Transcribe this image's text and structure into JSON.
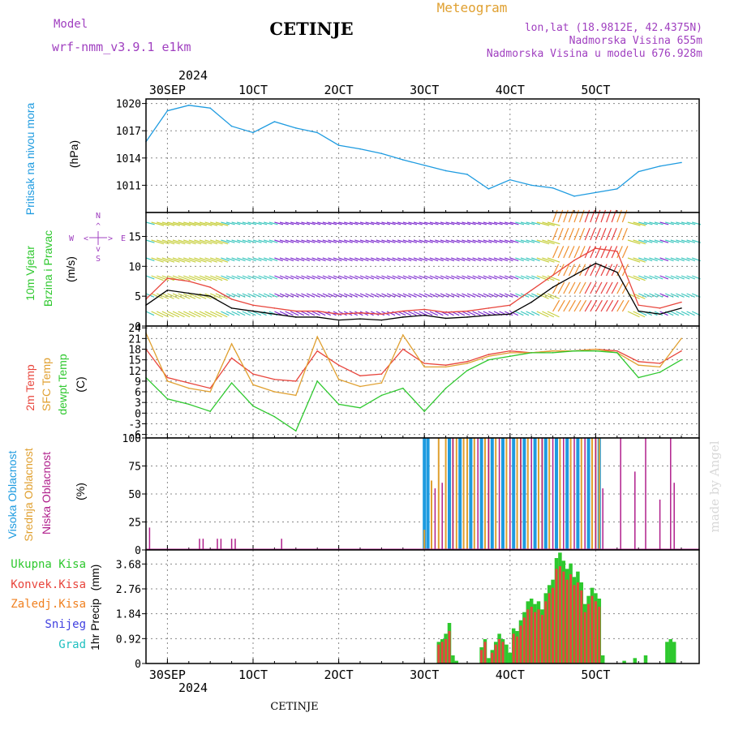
{
  "header": {
    "model_label": "Model",
    "model_name": "wrf-nmm_v3.9.1 e1km",
    "station_title": "CETINJE",
    "meteogram_label": "Meteogram",
    "lonlat": "lon,lat (18.9812E, 42.4375N)",
    "altitude": "Nadmorska Visina 655m",
    "model_altitude": "Nadmorska Visina u modelu 676.928m",
    "watermark": "made by Angel",
    "footer_title": "CETINJE"
  },
  "time_axis": {
    "top_year": "2024",
    "bottom_year": "2024",
    "tick_labels": [
      "30SEP",
      "1OCT",
      "2OCT",
      "3OCT",
      "4OCT",
      "5OCT"
    ]
  },
  "colors": {
    "pressure": "#1e9be0",
    "temp2m": "#e8453c",
    "sfc_temp": "#e0a030",
    "dewpt": "#2ec82e",
    "high_cloud": "#1e9be0",
    "mid_cloud": "#e0a030",
    "low_cloud": "#b0208c",
    "total_precip": "#2ec82e",
    "conv_precip": "#e8453c",
    "grid_precip": "#f08020",
    "snow": "#4040e0",
    "hail": "#20c0c0"
  },
  "chart_data": [
    {
      "type": "line",
      "panel": "pressure",
      "ylabel_main": "Pritisak na nivou mora",
      "ylabel_unit": "(hPa)",
      "yticks": [
        "1011",
        "1014",
        "1017",
        "1020"
      ],
      "ylim": [
        1008,
        1020.5
      ],
      "x_hours": [
        0,
        6,
        12,
        18,
        24,
        30,
        36,
        42,
        48,
        54,
        60,
        66,
        72,
        78,
        84,
        90,
        96,
        102,
        108,
        114,
        120,
        126,
        132,
        138,
        144,
        150
      ],
      "series": [
        {
          "values": [
            1015.8,
            1019.2,
            1019.8,
            1019.5,
            1017.5,
            1016.8,
            1018.0,
            1017.3,
            1016.8,
            1015.4,
            1015.0,
            1014.5,
            1013.8,
            1013.2,
            1012.6,
            1012.2,
            1010.6,
            1011.6,
            1011.0,
            1010.7,
            1009.8,
            1010.2,
            1010.6,
            1012.5,
            1013.1,
            1013.5
          ]
        }
      ]
    },
    {
      "type": "line",
      "panel": "wind",
      "ylabel_main": "10m Vjetar",
      "ylabel_sub": "Brzina i Pravac",
      "ylabel_unit": "(m/s)",
      "compass": [
        "N",
        "S",
        "E",
        "W",
        "<",
        ">",
        "^",
        "v"
      ],
      "yticks": [
        "0",
        "5",
        "10",
        "15"
      ],
      "ylim": [
        0,
        19
      ],
      "x_hours": [
        0,
        6,
        12,
        18,
        24,
        30,
        36,
        42,
        48,
        54,
        60,
        66,
        72,
        78,
        84,
        90,
        96,
        102,
        108,
        114,
        120,
        126,
        132,
        138,
        144,
        150
      ],
      "series": [
        {
          "name": "speed",
          "values": [
            3.5,
            6.0,
            5.5,
            5.0,
            3.0,
            2.5,
            2.0,
            1.5,
            1.5,
            1.0,
            1.2,
            1.0,
            1.5,
            1.8,
            1.3,
            1.5,
            1.8,
            2.0,
            4.0,
            6.5,
            8.5,
            10.5,
            9.0,
            2.5,
            2.0,
            3.0
          ]
        },
        {
          "name": "gust",
          "values": [
            4.5,
            8.0,
            7.5,
            6.5,
            4.5,
            3.5,
            3.0,
            2.5,
            2.5,
            2.0,
            2.2,
            2.0,
            2.5,
            2.8,
            2.3,
            2.5,
            3.0,
            3.5,
            6.0,
            8.5,
            11.0,
            13.0,
            12.5,
            3.5,
            3.0,
            4.0
          ]
        }
      ]
    },
    {
      "type": "line",
      "panel": "temperature",
      "ylabel_main": "2m Temp",
      "ylabel_sub": "SFC Temp",
      "ylabel_sub2": "dewpt Temp",
      "ylabel_unit": "(C)",
      "yticks": [
        "-6",
        "-3",
        "0",
        "3",
        "6",
        "9",
        "12",
        "15",
        "18",
        "21",
        "24"
      ],
      "ylim": [
        -7,
        24.5
      ],
      "x_hours": [
        0,
        6,
        12,
        18,
        24,
        30,
        36,
        42,
        48,
        54,
        60,
        66,
        72,
        78,
        84,
        90,
        96,
        102,
        108,
        114,
        120,
        126,
        132,
        138,
        144,
        150
      ],
      "series": [
        {
          "name": "2m Temp",
          "values": [
            18.0,
            10.0,
            8.5,
            7.0,
            15.5,
            11.0,
            9.5,
            9.0,
            17.5,
            13.5,
            10.5,
            11.0,
            18.0,
            14.0,
            13.5,
            14.5,
            16.5,
            17.5,
            17.0,
            17.5,
            17.5,
            18.0,
            17.5,
            14.5,
            14.0,
            17.5
          ]
        },
        {
          "name": "SFC Temp",
          "values": [
            22.5,
            9.0,
            7.0,
            6.0,
            19.5,
            8.0,
            6.0,
            5.0,
            21.5,
            9.5,
            7.5,
            8.5,
            22.0,
            13.0,
            13.0,
            14.0,
            16.0,
            17.0,
            17.0,
            17.5,
            17.5,
            18.0,
            17.0,
            13.5,
            13.0,
            21.0
          ]
        },
        {
          "name": "dewpt Temp",
          "values": [
            10.0,
            4.0,
            2.5,
            0.5,
            8.5,
            2.0,
            -1.0,
            -5.0,
            9.0,
            2.5,
            1.5,
            5.0,
            7.0,
            0.5,
            7.0,
            12.0,
            15.0,
            16.0,
            17.0,
            17.0,
            17.5,
            17.5,
            17.0,
            10.0,
            11.5,
            15.0
          ]
        }
      ]
    },
    {
      "type": "bar",
      "panel": "cloud",
      "ylabel_main": "Visoka Oblacnost",
      "ylabel_sub": "Srednja Oblacnost",
      "ylabel_sub2": "Niska Oblacnost",
      "ylabel_unit": "(%)",
      "yticks": [
        "0",
        "25",
        "50",
        "75",
        "100"
      ],
      "ylim": [
        0,
        100
      ],
      "series": [
        {
          "name": "Visoka Oblacnost",
          "x_hours": [
            78,
            79,
            85,
            88,
            91,
            94,
            97,
            100,
            103,
            106,
            109,
            112,
            115,
            118,
            121,
            124,
            127
          ],
          "values": [
            100,
            100,
            100,
            100,
            100,
            100,
            100,
            100,
            100,
            100,
            100,
            100,
            100,
            100,
            100,
            100,
            100
          ]
        },
        {
          "name": "Srednja Oblacnost",
          "x_hours": [
            78,
            80,
            82,
            84,
            86,
            87,
            89,
            90,
            92,
            95,
            96,
            98,
            101,
            104,
            105,
            107,
            110,
            111,
            113,
            116,
            119,
            122,
            125,
            126,
            127
          ],
          "values": [
            18,
            62,
            100,
            100,
            100,
            100,
            100,
            100,
            100,
            100,
            100,
            100,
            100,
            100,
            100,
            100,
            100,
            100,
            100,
            100,
            100,
            100,
            100,
            100,
            100
          ]
        },
        {
          "name": "Niska Oblacnost",
          "x_hours": [
            1,
            15,
            16,
            20,
            21,
            24,
            25,
            38,
            81,
            83,
            86,
            93,
            96,
            99,
            102,
            105,
            108,
            111,
            114,
            117,
            120,
            123,
            126,
            128,
            133,
            137,
            140,
            144,
            147,
            148
          ],
          "values": [
            20,
            10,
            10,
            10,
            10,
            10,
            10,
            10,
            55,
            60,
            100,
            100,
            100,
            100,
            100,
            100,
            100,
            100,
            100,
            100,
            100,
            100,
            100,
            55,
            100,
            70,
            100,
            45,
            100,
            60
          ]
        }
      ]
    },
    {
      "type": "bar",
      "panel": "precip",
      "ylabel_main": "1hr Precip",
      "ylabel_unit": "(mm)",
      "legend": [
        "Ukupna Kisa",
        "Konvek.Kisa",
        "Zaledj.Kisa",
        "Snijeg",
        "Grad"
      ],
      "yticks": [
        "0",
        "0.92",
        "1.84",
        "2.76",
        "3.68"
      ],
      "ylim": [
        0,
        4.2
      ],
      "series": [
        {
          "name": "Ukupna Kisa",
          "x_hours": [
            82,
            83,
            84,
            85,
            86,
            87,
            94,
            95,
            96,
            97,
            98,
            99,
            100,
            101,
            102,
            103,
            104,
            105,
            106,
            107,
            108,
            109,
            110,
            111,
            112,
            113,
            114,
            115,
            116,
            117,
            118,
            119,
            120,
            121,
            122,
            123,
            124,
            125,
            126,
            127,
            128,
            134,
            137,
            140,
            146,
            147,
            148
          ],
          "values": [
            0.8,
            0.9,
            1.1,
            1.5,
            0.3,
            0.1,
            0.6,
            0.9,
            0.2,
            0.5,
            0.8,
            1.1,
            0.9,
            0.7,
            0.4,
            1.3,
            1.2,
            1.6,
            1.9,
            2.3,
            2.4,
            2.2,
            2.3,
            2.0,
            2.6,
            2.9,
            3.1,
            3.9,
            4.1,
            3.8,
            3.5,
            3.7,
            3.2,
            3.4,
            3.0,
            2.2,
            2.5,
            2.8,
            2.6,
            2.4,
            0.3,
            0.1,
            0.2,
            0.3,
            0.8,
            0.9,
            0.8
          ]
        },
        {
          "name": "Konvek.Kisa",
          "x_hours": [
            82,
            83,
            84,
            85,
            94,
            95,
            97,
            98,
            99,
            100,
            103,
            104,
            105,
            106,
            107,
            108,
            109,
            110,
            111,
            112,
            113,
            114,
            115,
            116,
            117,
            118,
            119,
            120,
            121,
            122,
            123,
            124,
            125,
            126,
            127
          ],
          "values": [
            0.7,
            0.8,
            0.9,
            1.2,
            0.5,
            0.8,
            0.4,
            0.7,
            0.9,
            0.8,
            1.1,
            1.0,
            1.4,
            1.7,
            2.0,
            2.1,
            1.9,
            2.0,
            1.8,
            2.3,
            2.6,
            2.8,
            3.5,
            3.6,
            3.4,
            3.1,
            3.3,
            2.9,
            3.0,
            2.7,
            1.9,
            2.2,
            2.5,
            2.3,
            2.1
          ]
        }
      ]
    }
  ]
}
